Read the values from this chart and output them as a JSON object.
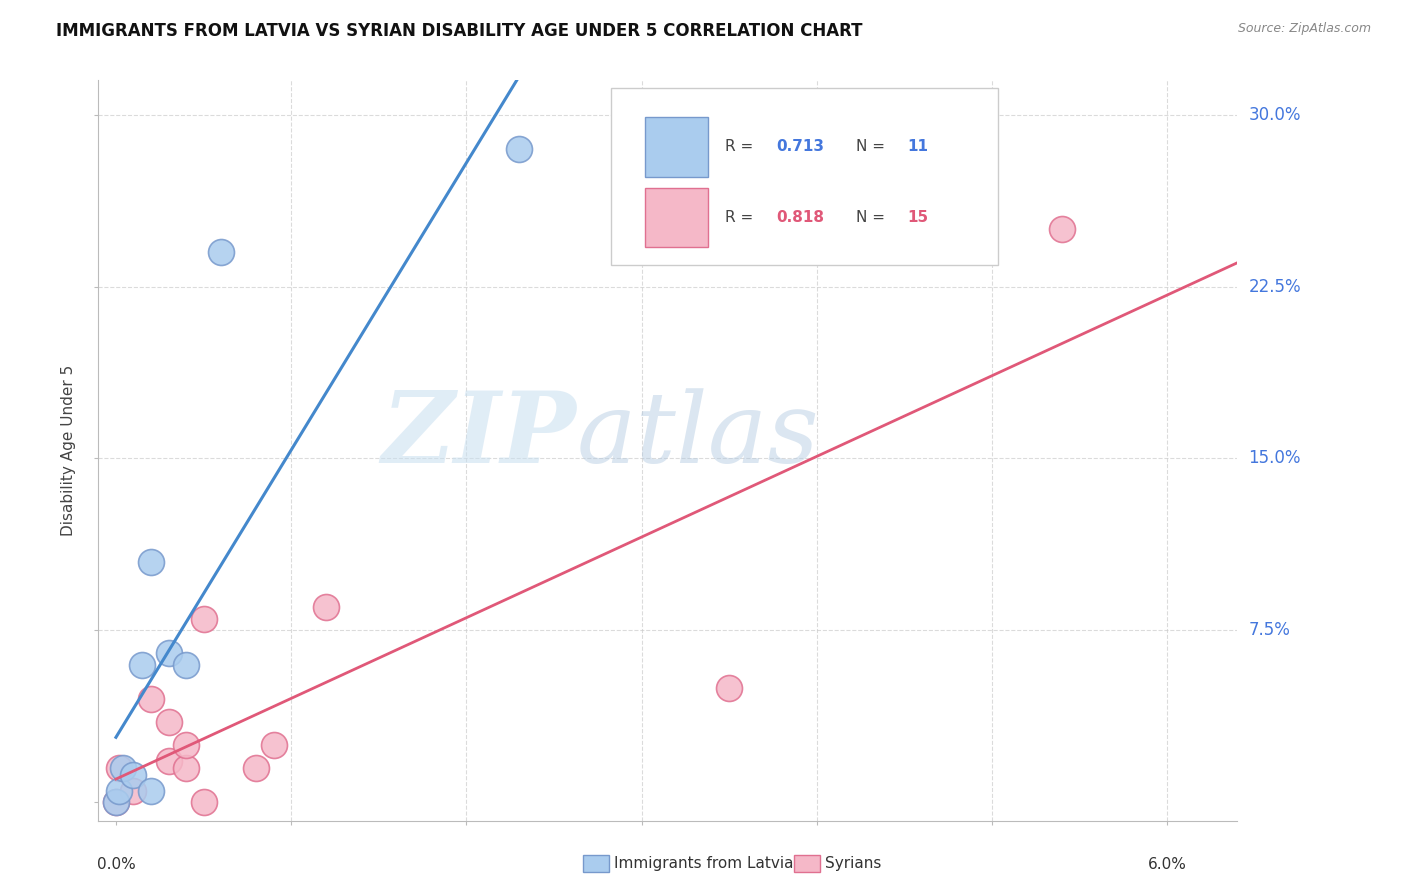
{
  "title": "IMMIGRANTS FROM LATVIA VS SYRIAN DISABILITY AGE UNDER 5 CORRELATION CHART",
  "source": "Source: ZipAtlas.com",
  "ylabel": "Disability Age Under 5",
  "yticks": [
    0.0,
    0.075,
    0.15,
    0.225,
    0.3
  ],
  "ytick_labels": [
    "",
    "7.5%",
    "15.0%",
    "22.5%",
    "30.0%"
  ],
  "xticks": [
    0.0,
    0.01,
    0.02,
    0.03,
    0.04,
    0.05,
    0.06
  ],
  "xtick_labels": [
    "0.0%",
    "",
    "",
    "",
    "",
    "",
    "6.0%"
  ],
  "xlim": [
    -0.001,
    0.064
  ],
  "ylim": [
    -0.008,
    0.315
  ],
  "latvia_x": [
    0.0,
    0.0002,
    0.0004,
    0.001,
    0.0015,
    0.002,
    0.002,
    0.003,
    0.004,
    0.006,
    0.023
  ],
  "latvia_y": [
    0.0,
    0.005,
    0.015,
    0.012,
    0.06,
    0.005,
    0.105,
    0.065,
    0.06,
    0.24,
    0.285
  ],
  "latvia_r": 0.713,
  "latvia_n": 11,
  "latvia_color": "#aaccee",
  "latvia_edge_color": "#7799cc",
  "latvia_trend_color": "#4488cc",
  "syria_x": [
    0.0,
    0.0002,
    0.001,
    0.002,
    0.003,
    0.003,
    0.004,
    0.004,
    0.005,
    0.005,
    0.008,
    0.009,
    0.012,
    0.035,
    0.054
  ],
  "syria_y": [
    0.0,
    0.015,
    0.005,
    0.045,
    0.018,
    0.035,
    0.015,
    0.025,
    0.0,
    0.08,
    0.015,
    0.025,
    0.085,
    0.05,
    0.25
  ],
  "syria_r": 0.818,
  "syria_n": 15,
  "syria_color": "#f5b8c8",
  "syria_edge_color": "#e07090",
  "syria_trend_color": "#e05878",
  "watermark_zip": "ZIP",
  "watermark_atlas": "atlas",
  "legend_r_latvia": "0.713",
  "legend_n_latvia": "11",
  "legend_r_syria": "0.818",
  "legend_n_syria": "15",
  "background_color": "#ffffff",
  "grid_color": "#cccccc"
}
